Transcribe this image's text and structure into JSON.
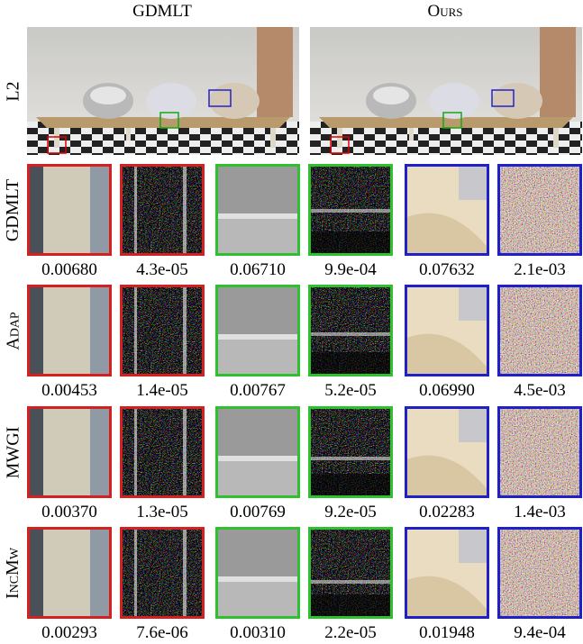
{
  "columns": [
    "GDMLT",
    "Ours"
  ],
  "scene_label": "L2",
  "rows": [
    {
      "label": "GDMLT",
      "values": [
        "0.00680",
        "4.3e-05",
        "0.06710",
        "9.9e-04",
        "0.07632",
        "2.1e-03"
      ]
    },
    {
      "label": "Adap",
      "values": [
        "0.00453",
        "1.4e-05",
        "0.00767",
        "5.2e-05",
        "0.06990",
        "4.5e-03"
      ]
    },
    {
      "label": "MWGI",
      "values": [
        "0.00370",
        "1.3e-05",
        "0.00769",
        "9.2e-05",
        "0.02283",
        "1.4e-03"
      ]
    },
    {
      "label": "IncMw",
      "values": [
        "0.00293",
        "7.6e-06",
        "0.00310",
        "2.2e-05",
        "0.01948",
        "9.4e-04"
      ]
    }
  ]
}
